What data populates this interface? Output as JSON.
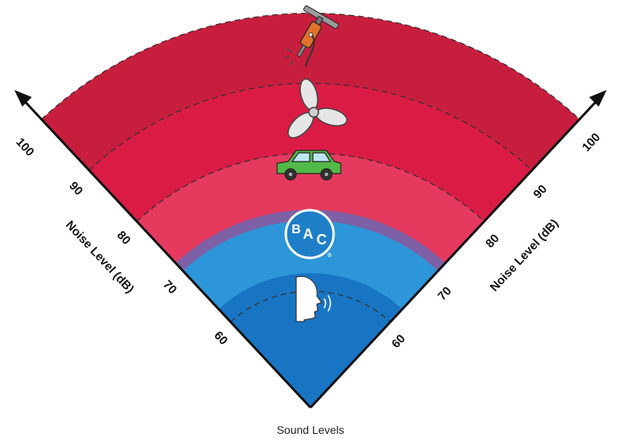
{
  "caption": "Sound Levels",
  "left_axis": {
    "title": "Noise Level (dB)",
    "ticks": [
      "100",
      "90",
      "80",
      "70",
      "60"
    ]
  },
  "right_axis": {
    "title": "Noise Level (dB)",
    "ticks": [
      "100",
      "90",
      "80",
      "70",
      "60"
    ]
  },
  "logo": {
    "line1": "B",
    "line2": "A",
    "line3": "C",
    "mark": "®"
  },
  "icons": [
    "jackhammer-icon",
    "fan-icon",
    "car-icon",
    "bac-logo",
    "speaking-head-icon"
  ],
  "colors": {
    "red_outer": "#C81E3E",
    "red_mid": "#DA1C45",
    "red_inner": "#E53A5D",
    "purple_band": "#7E60A6",
    "blue_outer": "#2C96D8",
    "blue_inner": "#1875C4",
    "car_green": "#53B948",
    "jackhammer_orange": "#E0732A"
  }
}
